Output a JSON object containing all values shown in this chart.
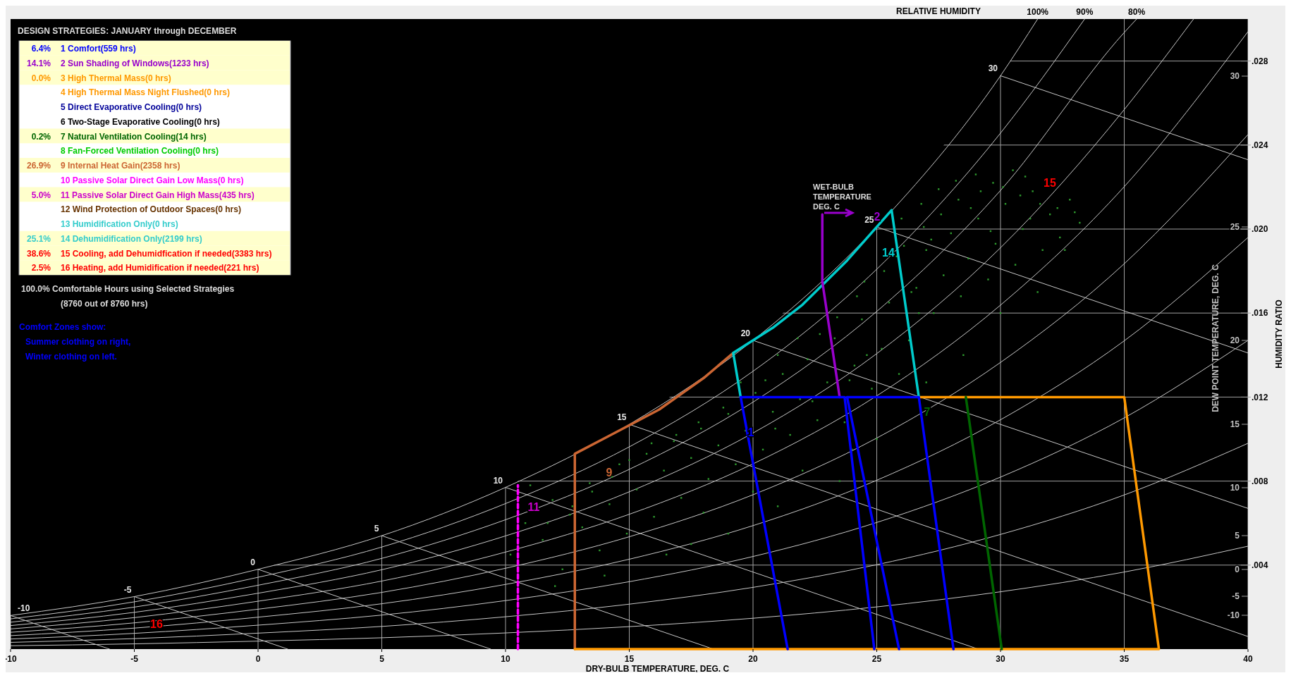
{
  "chart_data": [
    {
      "type": "scatter",
      "xlabel": "DRY-BULB TEMPERATURE, DEG. C",
      "ylabel": "HUMIDITY RATIO",
      "y2label": "DEW POINT TEMPERATURE, DEG. C",
      "xlim": [
        -10,
        40
      ],
      "ylim": [
        0,
        0.03
      ],
      "xticks": [
        -10,
        -5,
        0,
        5,
        10,
        15,
        20,
        25,
        30,
        35,
        40
      ],
      "yticks": [
        {
          "value": 0.004,
          "label": ".004"
        },
        {
          "value": 0.008,
          "label": ".008"
        },
        {
          "value": 0.012,
          "label": ".012"
        },
        {
          "value": 0.016,
          "label": ".016"
        },
        {
          "value": 0.02,
          "label": ".020"
        },
        {
          "value": 0.024,
          "label": ".024"
        },
        {
          "value": 0.028,
          "label": ".028"
        }
      ],
      "grid": true,
      "series": [
        {
          "name": "100%",
          "type": "line",
          "color": "#c8c8c8",
          "x": [
            -10,
            -5,
            0,
            5,
            10,
            15,
            20,
            25,
            30,
            31.5
          ],
          "values": [
            0.0016,
            0.0025,
            0.0038,
            0.0054,
            0.0077,
            0.0107,
            0.0147,
            0.0201,
            0.0273,
            0.03
          ]
        },
        {
          "name": "90%",
          "type": "line",
          "color": "#c8c8c8",
          "x": [
            -10,
            -5,
            0,
            5,
            10,
            15,
            20,
            25,
            30,
            33.4
          ],
          "values": [
            0.00144,
            0.00225,
            0.00342,
            0.00486,
            0.00693,
            0.00963,
            0.01323,
            0.01809,
            0.02457,
            0.03
          ]
        },
        {
          "name": "80%",
          "type": "line",
          "color": "#c8c8c8",
          "x": [
            -10,
            -5,
            0,
            5,
            10,
            15,
            20,
            25,
            30,
            35,
            35.5
          ],
          "values": [
            0.00128,
            0.002,
            0.00304,
            0.00432,
            0.00616,
            0.00856,
            0.01176,
            0.01608,
            0.02184,
            0.02936,
            0.03
          ]
        },
        {
          "type": "line",
          "color": "#c8c8c8",
          "x": [
            -10,
            -5,
            0,
            5,
            10,
            15,
            20,
            25,
            30,
            35,
            37.8
          ],
          "values": [
            0.00112,
            0.00175,
            0.00266,
            0.00378,
            0.00539,
            0.00749,
            0.01029,
            0.01407,
            0.01911,
            0.02569,
            0.03
          ]
        },
        {
          "type": "line",
          "color": "#c8c8c8",
          "x": [
            -10,
            -5,
            0,
            5,
            10,
            15,
            20,
            25,
            30,
            35,
            40
          ],
          "values": [
            0.00096,
            0.0015,
            0.00228,
            0.00324,
            0.00462,
            0.00642,
            0.00882,
            0.01206,
            0.01638,
            0.02202,
            0.0294
          ]
        },
        {
          "type": "line",
          "color": "#c8c8c8",
          "x": [
            -10,
            -5,
            0,
            5,
            10,
            15,
            20,
            25,
            30,
            35,
            40
          ],
          "values": [
            0.0008,
            0.00125,
            0.0019,
            0.0027,
            0.00385,
            0.00535,
            0.00735,
            0.01005,
            0.01365,
            0.01835,
            0.0245
          ]
        },
        {
          "type": "line",
          "color": "#c8c8c8",
          "x": [
            -10,
            -5,
            0,
            5,
            10,
            15,
            20,
            25,
            30,
            35,
            40
          ],
          "values": [
            0.00064,
            0.001,
            0.00152,
            0.00216,
            0.00308,
            0.00428,
            0.00588,
            0.00804,
            0.01092,
            0.01468,
            0.0196
          ]
        },
        {
          "type": "line",
          "color": "#c8c8c8",
          "x": [
            -10,
            -5,
            0,
            5,
            10,
            15,
            20,
            25,
            30,
            35,
            40
          ],
          "values": [
            0.00048,
            0.00075,
            0.00114,
            0.00162,
            0.00231,
            0.00321,
            0.00441,
            0.00603,
            0.00819,
            0.01101,
            0.0147
          ]
        },
        {
          "type": "line",
          "color": "#c8c8c8",
          "x": [
            -10,
            -5,
            0,
            5,
            10,
            15,
            20,
            25,
            30,
            35,
            40
          ],
          "values": [
            0.00032,
            0.0005,
            0.00076,
            0.00108,
            0.00154,
            0.00214,
            0.00294,
            0.00402,
            0.00546,
            0.00734,
            0.0098
          ]
        },
        {
          "type": "line",
          "color": "#c8c8c8",
          "x": [
            -10,
            -5,
            0,
            5,
            10,
            15,
            20,
            25,
            30,
            35,
            40
          ],
          "values": [
            0.00016,
            0.00025,
            0.00038,
            0.00054,
            0.00077,
            0.00107,
            0.00147,
            0.00201,
            0.00273,
            0.00367,
            0.0049
          ]
        },
        {
          "type": "line",
          "color": "#c8c8c8",
          "x": [
            -10,
            -6
          ],
          "values": [
            0.0016,
            0
          ]
        },
        {
          "type": "line",
          "color": "#c8c8c8",
          "x": [
            -5,
            1.2
          ],
          "values": [
            0.0025,
            0
          ]
        },
        {
          "type": "line",
          "color": "#c8c8c8",
          "x": [
            0,
            9.4
          ],
          "values": [
            0.0038,
            0
          ]
        },
        {
          "type": "line",
          "color": "#c8c8c8",
          "x": [
            5,
            18.4
          ],
          "values": [
            0.0054,
            0
          ]
        },
        {
          "type": "line",
          "color": "#c8c8c8",
          "x": [
            10,
            29.1
          ],
          "values": [
            0.0077,
            0
          ]
        },
        {
          "type": "line",
          "color": "#c8c8c8",
          "x": [
            15,
            40
          ],
          "values": [
            0.0107,
            0.0006
          ]
        },
        {
          "type": "line",
          "color": "#c8c8c8",
          "x": [
            20,
            40
          ],
          "values": [
            0.0147,
            0.0067
          ]
        },
        {
          "type": "line",
          "color": "#c8c8c8",
          "x": [
            25,
            40
          ],
          "values": [
            0.0201,
            0.0141
          ]
        },
        {
          "type": "line",
          "color": "#c8c8c8",
          "x": [
            30,
            40
          ],
          "values": [
            0.0273,
            0.0233
          ]
        },
        {
          "type": "scatter",
          "color": "#2e9b2e",
          "x": [
            10.2,
            10.8,
            11.5,
            11.9,
            12.3,
            12.6,
            13.1,
            13.4,
            13.8,
            14.2,
            14.6,
            14.9,
            15.3,
            15.7,
            16.0,
            16.4,
            16.8,
            17.1,
            17.5,
            17.9,
            18.2,
            18.6,
            19.0,
            19.3,
            19.7,
            20.1,
            20.4,
            20.8,
            21.2,
            21.5,
            21.9,
            22.2,
            22.6,
            23.0,
            23.3,
            23.7,
            24.1,
            24.4,
            24.8,
            25.2,
            25.5,
            25.9,
            26.3,
            26.6,
            27.0,
            27.3,
            27.7,
            28.0,
            28.4,
            28.7,
            29.1,
            29.5,
            29.8,
            30.2,
            30.6,
            30.9,
            31.3,
            31.7,
            32.0,
            32.4,
            32.8,
            33.2,
            26.0,
            26.8,
            27.5,
            28.2,
            29.0,
            29.7,
            30.5,
            31.0,
            18.0,
            20.0,
            22.0,
            24.0,
            16.5,
            19.0,
            21.0,
            23.5,
            25.0,
            27.0,
            28.5,
            30.0,
            31.5,
            12.0,
            14.0,
            17.5,
            11.0,
            24.5,
            25.3,
            26.1,
            26.9,
            27.6,
            28.3,
            29.2,
            30.1,
            30.8,
            31.6,
            32.3,
            33.0,
            24.2,
            25.8,
            27.2,
            28.8,
            29.6,
            31.2,
            32.6,
            26.4,
            21.0,
            21.8,
            22.7,
            23.4,
            20.5,
            19.5,
            18.8,
            17.8,
            16.9,
            15.9,
            15.0,
            14.3,
            13.5,
            12.7,
            11.7,
            20.9,
            22.4,
            23.9,
            24.6,
            26.7
          ],
          "values": [
            0.0045,
            0.006,
            0.0052,
            0.0071,
            0.0038,
            0.0064,
            0.0058,
            0.0079,
            0.0047,
            0.0069,
            0.0088,
            0.0055,
            0.0076,
            0.0093,
            0.0063,
            0.0085,
            0.0099,
            0.0072,
            0.0091,
            0.0105,
            0.0081,
            0.0097,
            0.0112,
            0.0088,
            0.0104,
            0.0122,
            0.0095,
            0.0113,
            0.0131,
            0.0102,
            0.0119,
            0.0138,
            0.0109,
            0.0127,
            0.0148,
            0.0108,
            0.0135,
            0.0157,
            0.0124,
            0.0143,
            0.0165,
            0.0131,
            0.0147,
            0.0172,
            0.019,
            0.016,
            0.0178,
            0.0198,
            0.0168,
            0.0186,
            0.0205,
            0.0176,
            0.0193,
            0.0212,
            0.0183,
            0.02,
            0.0218,
            0.019,
            0.0207,
            0.0196,
            0.0214,
            0.0203,
            0.0205,
            0.0212,
            0.0219,
            0.0223,
            0.0226,
            0.0222,
            0.0228,
            0.0225,
            0.0065,
            0.0075,
            0.0085,
            0.0095,
            0.0045,
            0.0055,
            0.0068,
            0.008,
            0.01,
            0.0127,
            0.014,
            0.016,
            0.017,
            0.003,
            0.0035,
            0.005,
            0.0078,
            0.0175,
            0.018,
            0.0192,
            0.0201,
            0.0207,
            0.0214,
            0.0218,
            0.022,
            0.0216,
            0.0212,
            0.021,
            0.0208,
            0.0168,
            0.0187,
            0.0195,
            0.021,
            0.0199,
            0.0205,
            0.019,
            0.017,
            0.014,
            0.0148,
            0.015,
            0.0158,
            0.0128,
            0.0127,
            0.0115,
            0.0108,
            0.0102,
            0.0098,
            0.009,
            0.0082,
            0.0075,
            0.0068,
            0.006,
            0.0105,
            0.0118,
            0.0128,
            0.014,
            0.016
          ]
        },
        {
          "type": "line",
          "color": "#cc6633",
          "x": [
            12.8,
            12.8,
            14.1,
            16.2,
            18.0,
            19.2
          ],
          "values": [
            0,
            0.0093,
            0.0101,
            0.0114,
            0.0129,
            0.0141
          ]
        },
        {
          "type": "line",
          "color": "#ff9900",
          "x": [
            26.7,
            35.0,
            36.4,
            12.8
          ],
          "values": [
            0.012,
            0.012,
            0,
            0
          ]
        },
        {
          "type": "line",
          "color": "#00cccc",
          "x": [
            19.5,
            19.2,
            20.8,
            22.0,
            23.8,
            25.6,
            26.7
          ],
          "values": [
            0.012,
            0.0141,
            0.0153,
            0.0164,
            0.0185,
            0.0209,
            0.012
          ]
        },
        {
          "type": "line",
          "color": "#006600",
          "x": [
            28.6,
            30.05
          ],
          "values": [
            0.012,
            0
          ]
        },
        {
          "type": "line",
          "color": "#9900cc",
          "x": [
            22.8,
            22.8,
            23.5
          ],
          "values": [
            0.0207,
            0.0175,
            0.012
          ]
        },
        {
          "type": "line",
          "color": "#ff00ff",
          "line_style": "dashed",
          "x": [
            10.5,
            10.5
          ],
          "values": [
            0,
            0.0078
          ]
        },
        {
          "type": "line",
          "color": "#0000ff",
          "x": [
            21.4,
            19.5,
            23.7,
            24.9
          ],
          "values": [
            0,
            0.012,
            0.012,
            0
          ]
        },
        {
          "type": "line",
          "color": "#0000ff",
          "x": [
            25.9,
            23.8,
            26.7,
            28.1
          ],
          "values": [
            0,
            0.012,
            0.012,
            0
          ]
        }
      ],
      "annotations": [
        "RELATIVE HUMIDITY",
        "WET-BULB\nTEMPERATURE\nDEG. C",
        "15",
        "2",
        "14",
        "9",
        "11",
        "16",
        "1",
        "7",
        "30",
        "25",
        "20",
        "15",
        "10",
        "5",
        "0",
        "-5",
        "-10",
        {
          "text": "30",
          "x": 30,
          "y": 0.0273
        },
        {
          "text": "25",
          "x": 25,
          "y": 0.0201
        },
        {
          "text": "20",
          "x": 20,
          "y": 0.0147
        },
        {
          "text": "15",
          "x": 15,
          "y": 0.0107
        },
        {
          "text": "10",
          "x": 10,
          "y": 0.0077
        },
        {
          "text": "5",
          "x": 5,
          "y": 0.0054
        },
        {
          "text": "0",
          "x": 0,
          "y": 0.0038
        },
        {
          "text": "-5",
          "x": -5,
          "y": 0.0025
        },
        {
          "text": "-10",
          "x": -9.6,
          "y": 0.0016
        }
      ]
    },
    {
      "type": "other",
      "title": "DESIGN STRATEGIES:  JANUARY through DECEMBER",
      "categories": [
        "1 Comfort(559 hrs)",
        "2 Sun Shading of Windows(1233 hrs)",
        "3 High Thermal Mass(0 hrs)",
        "4 High Thermal Mass Night Flushed(0 hrs)",
        "5 Direct Evaporative Cooling(0 hrs)",
        "6 Two-Stage Evaporative Cooling(0 hrs)",
        "7 Natural Ventilation Cooling(14 hrs)",
        "8 Fan-Forced Ventilation Cooling(0 hrs)",
        "9 Internal Heat Gain(2358 hrs)",
        "10 Passive Solar Direct Gain Low Mass(0 hrs)",
        "11 Passive Solar Direct Gain High Mass(435 hrs)",
        "12 Wind Protection of Outdoor Spaces(0 hrs)",
        "13 Humidification Only(0 hrs)",
        "14 Dehumidification Only(2199 hrs)",
        "15 Cooling, add Dehumidfication if needed(3383 hrs)",
        "16 Heating, add Humidification if needed(221 hrs)"
      ],
      "value_labels": [
        "6.4%",
        "14.1%",
        "0.0%",
        null,
        null,
        null,
        "0.2%",
        null,
        "26.9%",
        null,
        "5.0%",
        null,
        null,
        "25.1%",
        "38.6%",
        "2.5%"
      ],
      "colors": [
        "#0000ff",
        "#9900cc",
        "#ff9900",
        "#ff9900",
        "#000099",
        "#000000",
        "#006600",
        "#00cc00",
        "#cc6633",
        "#ff00ff",
        "#cc00cc",
        "#663300",
        "#33cccc",
        "#33cccc",
        "#ff0000",
        "#ff0000"
      ],
      "annotations": [
        "100.0%   Comfortable Hours using Selected Strategies",
        "(8760 out of 8760 hrs)",
        "Comfort Zones show:",
        "Summer clothing on right,",
        "Winter clothing on left."
      ]
    }
  ]
}
